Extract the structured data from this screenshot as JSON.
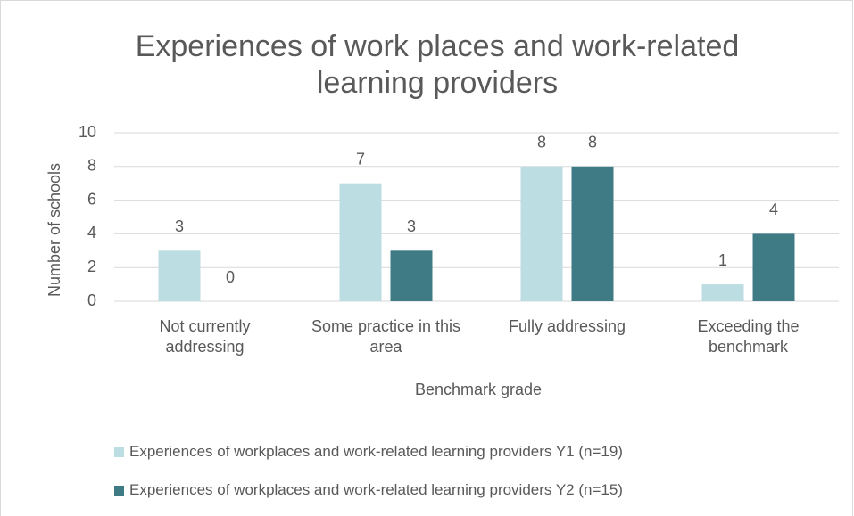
{
  "chart_data": {
    "type": "bar",
    "title": "Experiences of work places and work-related learning providers",
    "x_label": "Benchmark grade",
    "y_label": "Number of schools",
    "categories": [
      "Not currently addressing",
      "Some practice in this area",
      "Fully addressing",
      "Exceeding the benchmark"
    ],
    "series": [
      {
        "name": "Experiences of workplaces and work-related learning providers Y1 (n=19)",
        "color": "#bcdde1",
        "values": [
          3,
          7,
          8,
          1
        ]
      },
      {
        "name": "Experiences of workplaces and work-related learning providers Y2  (n=15)",
        "color": "#3f7b84",
        "values": [
          0,
          3,
          8,
          4
        ]
      }
    ],
    "ylim": [
      0,
      10
    ],
    "yticks": [
      0,
      2,
      4,
      6,
      8,
      10
    ],
    "grid": true,
    "legend": "bottom"
  }
}
